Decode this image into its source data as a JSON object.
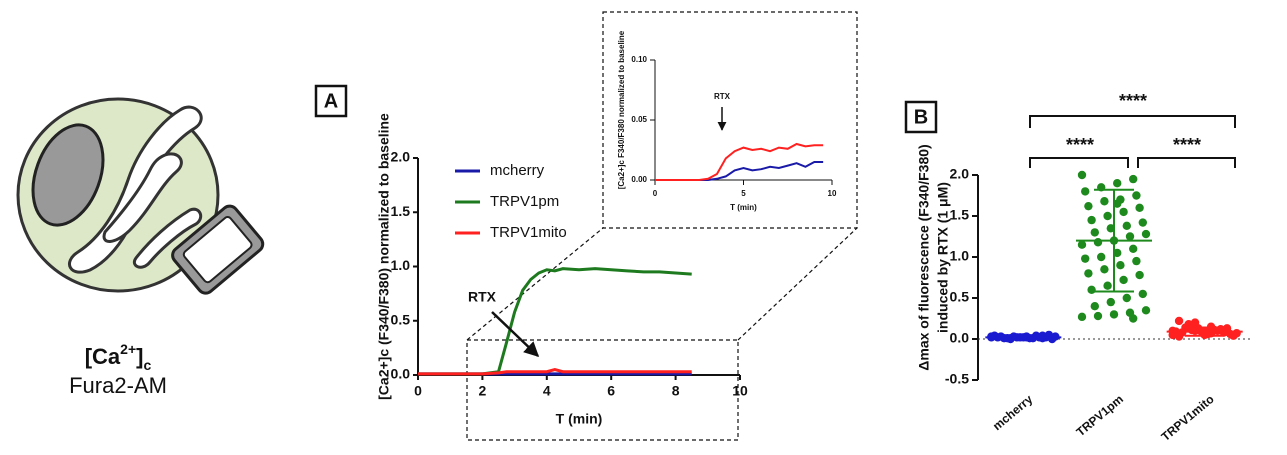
{
  "panels": [
    "A",
    "B"
  ],
  "cell_label": [
    "[Ca",
    "2+",
    "]",
    "c"
  ],
  "cell_dye": "Fura2-AM",
  "chart_data": [
    {
      "type": "line",
      "ylabel": "[Ca2+]c (F340/F380) normalized to baseline",
      "xlabel": "T (min)",
      "annotation": "RTX",
      "legend": "top-left",
      "xlim": [
        0,
        10
      ],
      "xticks": [
        0,
        2,
        4,
        6,
        8,
        10
      ],
      "ylim": [
        0,
        2
      ],
      "yticks": [
        {
          "value": 0,
          "label": "0.0"
        },
        {
          "value": 0.5,
          "label": "0.5"
        },
        {
          "value": 1,
          "label": "1.0"
        },
        {
          "value": 1.5,
          "label": "1.5"
        },
        {
          "value": 2,
          "label": "2.0"
        }
      ],
      "x": [
        0,
        0.5,
        1,
        1.5,
        2,
        2.5,
        2.75,
        3,
        3.25,
        3.5,
        3.75,
        4,
        4.25,
        4.5,
        5,
        5.5,
        6,
        6.5,
        7,
        7.5,
        8,
        8.5
      ],
      "series": [
        {
          "name": "mcherry",
          "color": "#1a1aa8",
          "values": [
            0.01,
            0.01,
            0.01,
            0.01,
            0.01,
            0.01,
            0.01,
            0.01,
            0.01,
            0.01,
            0.01,
            0.01,
            0.01,
            0.01,
            0.01,
            0.01,
            0.01,
            0.01,
            0.01,
            0.01,
            0.01,
            0.01
          ]
        },
        {
          "name": "TRPV1pm",
          "color": "#1e7a1e",
          "values": [
            0.01,
            0.01,
            0.01,
            0.01,
            0.01,
            0.03,
            0.3,
            0.58,
            0.78,
            0.88,
            0.94,
            0.97,
            0.96,
            0.98,
            0.97,
            0.98,
            0.97,
            0.96,
            0.95,
            0.95,
            0.94,
            0.93
          ]
        },
        {
          "name": "TRPV1mito",
          "color": "#ff2020",
          "values": [
            0.01,
            0.01,
            0.01,
            0.01,
            0.01,
            0.02,
            0.03,
            0.03,
            0.03,
            0.03,
            0.03,
            0.03,
            0.05,
            0.03,
            0.03,
            0.03,
            0.03,
            0.03,
            0.03,
            0.03,
            0.03,
            0.03
          ]
        }
      ]
    },
    {
      "type": "line",
      "ylabel": "[Ca2+]c F340/F380 normalized to baseline",
      "xlabel": "T (min)",
      "annotation": "RTX",
      "xlim": [
        0,
        10
      ],
      "xticks": [
        0,
        5,
        10
      ],
      "ylim": [
        0,
        0.1
      ],
      "yticks": [
        {
          "value": 0,
          "label": "0.00"
        },
        {
          "value": 0.05,
          "label": "0.05"
        },
        {
          "value": 0.1,
          "label": "0.10"
        }
      ],
      "x": [
        0,
        0.5,
        1,
        1.5,
        2,
        2.5,
        3,
        3.5,
        4,
        4.5,
        5,
        5.5,
        6,
        6.5,
        7,
        7.5,
        8,
        8.5,
        9,
        9.5
      ],
      "series": [
        {
          "color": "#1a1aa8",
          "values": [
            0,
            0,
            0,
            0,
            0,
            0,
            0,
            0.001,
            0.003,
            0.008,
            0.01,
            0.008,
            0.009,
            0.011,
            0.01,
            0.012,
            0.014,
            0.011,
            0.015,
            0.015
          ]
        },
        {
          "color": "#ff2020",
          "values": [
            0,
            0,
            0,
            0,
            0,
            0,
            0.001,
            0.005,
            0.018,
            0.024,
            0.027,
            0.025,
            0.026,
            0.024,
            0.027,
            0.026,
            0.03,
            0.028,
            0.029,
            0.029
          ]
        }
      ]
    },
    {
      "type": "dot",
      "ylabel": [
        "Δmax of fluorescence (F340/F380)",
        "induced by RTX (1 μM)"
      ],
      "categories": [
        "mcherry",
        "TRPV1pm",
        "TRPV1mito"
      ],
      "colors": [
        "#1a1ad0",
        "#1e8a1e",
        "#ff2020"
      ],
      "ylim": [
        -0.5,
        2
      ],
      "yticks": [
        {
          "value": -0.5,
          "label": "-0.5"
        },
        {
          "value": 0,
          "label": "0.0"
        },
        {
          "value": 0.5,
          "label": "0.5"
        },
        {
          "value": 1,
          "label": "1.0"
        },
        {
          "value": 1.5,
          "label": "1.5"
        },
        {
          "value": 2,
          "label": "2.0"
        }
      ],
      "zero_line": true,
      "annotations": [
        "****",
        "****",
        "****"
      ],
      "values": [
        [
          0.02,
          0.01,
          0.03,
          0.0,
          0.04,
          0.02,
          0.01,
          0.03,
          0.02,
          0.05,
          0.01,
          0.02,
          0.03,
          0.0,
          0.04,
          0.02,
          0.01,
          0.03,
          0.02,
          0.02,
          0.01,
          0.03,
          0.04,
          0.02,
          0.01
        ],
        [
          2.0,
          1.95,
          1.9,
          1.85,
          1.8,
          1.75,
          1.7,
          1.68,
          1.62,
          1.6,
          1.55,
          1.5,
          1.45,
          1.42,
          1.38,
          1.35,
          1.3,
          1.28,
          1.25,
          1.2,
          1.18,
          1.15,
          1.1,
          1.05,
          1.0,
          0.98,
          0.95,
          0.9,
          0.85,
          0.8,
          0.78,
          0.72,
          0.65,
          0.6,
          0.55,
          0.5,
          0.45,
          0.4,
          0.35,
          0.32,
          0.3,
          0.28,
          0.27,
          0.25,
          1.65
        ],
        [
          0.05,
          0.08,
          0.1,
          0.12,
          0.07,
          0.09,
          0.15,
          0.2,
          0.22,
          0.06,
          0.11,
          0.13,
          0.08,
          0.04,
          0.1,
          0.09,
          0.14,
          0.07,
          0.12,
          0.05,
          0.18,
          0.1,
          0.08,
          0.06,
          0.11,
          0.09,
          0.13,
          0.07,
          0.1,
          0.03
        ]
      ],
      "means": [
        0.02,
        1.2,
        0.09
      ],
      "sds": [
        0.02,
        0.62,
        0.05
      ]
    }
  ]
}
